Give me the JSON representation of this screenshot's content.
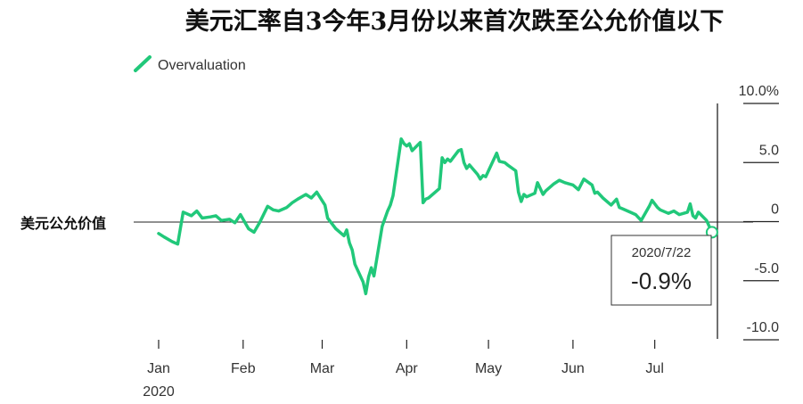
{
  "chart_data": {
    "type": "line",
    "title": "美元汇率自3今年3月份以来首次跌至公允价值以下",
    "series": [
      {
        "name": "Overvaluation",
        "color": "#21c87a",
        "points": [
          [
            "2020-01-01",
            -1.0
          ],
          [
            "2020-01-03",
            -1.3
          ],
          [
            "2020-01-06",
            -1.7
          ],
          [
            "2020-01-08",
            -1.9
          ],
          [
            "2020-01-10",
            0.8
          ],
          [
            "2020-01-13",
            0.5
          ],
          [
            "2020-01-15",
            0.9
          ],
          [
            "2020-01-17",
            0.3
          ],
          [
            "2020-01-20",
            0.4
          ],
          [
            "2020-01-22",
            0.5
          ],
          [
            "2020-01-24",
            0.1
          ],
          [
            "2020-01-27",
            0.2
          ],
          [
            "2020-01-29",
            -0.1
          ],
          [
            "2020-01-31",
            0.6
          ],
          [
            "2020-02-03",
            -0.6
          ],
          [
            "2020-02-05",
            -0.9
          ],
          [
            "2020-02-07",
            -0.1
          ],
          [
            "2020-02-10",
            1.3
          ],
          [
            "2020-02-12",
            1.0
          ],
          [
            "2020-02-14",
            0.9
          ],
          [
            "2020-02-17",
            1.2
          ],
          [
            "2020-02-19",
            1.6
          ],
          [
            "2020-02-21",
            1.9
          ],
          [
            "2020-02-24",
            2.3
          ],
          [
            "2020-02-26",
            2.0
          ],
          [
            "2020-02-28",
            2.5
          ],
          [
            "2020-03-02",
            1.4
          ],
          [
            "2020-03-03",
            0.3
          ],
          [
            "2020-03-06",
            -0.6
          ],
          [
            "2020-03-09",
            -1.2
          ],
          [
            "2020-03-10",
            -0.7
          ],
          [
            "2020-03-11",
            -1.8
          ],
          [
            "2020-03-12",
            -2.4
          ],
          [
            "2020-03-13",
            -3.6
          ],
          [
            "2020-03-16",
            -5.1
          ],
          [
            "2020-03-17",
            -6.1
          ],
          [
            "2020-03-18",
            -4.7
          ],
          [
            "2020-03-19",
            -3.9
          ],
          [
            "2020-03-20",
            -4.6
          ],
          [
            "2020-03-23",
            -0.4
          ],
          [
            "2020-03-25",
            0.9
          ],
          [
            "2020-03-26",
            1.4
          ],
          [
            "2020-03-27",
            2.2
          ],
          [
            "2020-03-30",
            7.0
          ],
          [
            "2020-03-31",
            6.6
          ],
          [
            "2020-04-01",
            6.4
          ],
          [
            "2020-04-02",
            6.6
          ],
          [
            "2020-04-03",
            6.0
          ],
          [
            "2020-04-06",
            6.7
          ],
          [
            "2020-04-07",
            1.6
          ],
          [
            "2020-04-08",
            1.9
          ],
          [
            "2020-04-09",
            2.0
          ],
          [
            "2020-04-13",
            2.8
          ],
          [
            "2020-04-14",
            5.4
          ],
          [
            "2020-04-15",
            5.0
          ],
          [
            "2020-04-16",
            5.3
          ],
          [
            "2020-04-17",
            5.1
          ],
          [
            "2020-04-20",
            6.0
          ],
          [
            "2020-04-21",
            6.1
          ],
          [
            "2020-04-22",
            5.0
          ],
          [
            "2020-04-23",
            4.5
          ],
          [
            "2020-04-24",
            4.8
          ],
          [
            "2020-04-27",
            4.0
          ],
          [
            "2020-04-28",
            3.6
          ],
          [
            "2020-04-29",
            3.9
          ],
          [
            "2020-04-30",
            3.8
          ],
          [
            "2020-05-01",
            4.3
          ],
          [
            "2020-05-04",
            5.8
          ],
          [
            "2020-05-05",
            5.1
          ],
          [
            "2020-05-07",
            5.0
          ],
          [
            "2020-05-08",
            4.8
          ],
          [
            "2020-05-11",
            4.3
          ],
          [
            "2020-05-12",
            2.5
          ],
          [
            "2020-05-13",
            1.7
          ],
          [
            "2020-05-14",
            2.3
          ],
          [
            "2020-05-15",
            2.1
          ],
          [
            "2020-05-18",
            2.4
          ],
          [
            "2020-05-19",
            3.3
          ],
          [
            "2020-05-20",
            2.8
          ],
          [
            "2020-05-21",
            2.3
          ],
          [
            "2020-05-22",
            2.6
          ],
          [
            "2020-05-25",
            3.2
          ],
          [
            "2020-05-27",
            3.5
          ],
          [
            "2020-05-29",
            3.3
          ],
          [
            "2020-06-01",
            3.1
          ],
          [
            "2020-06-03",
            2.7
          ],
          [
            "2020-06-05",
            3.6
          ],
          [
            "2020-06-08",
            3.1
          ],
          [
            "2020-06-09",
            2.4
          ],
          [
            "2020-06-10",
            2.5
          ],
          [
            "2020-06-12",
            2.0
          ],
          [
            "2020-06-15",
            1.4
          ],
          [
            "2020-06-17",
            1.9
          ],
          [
            "2020-06-18",
            1.2
          ],
          [
            "2020-06-19",
            1.1
          ],
          [
            "2020-06-22",
            0.8
          ],
          [
            "2020-06-24",
            0.6
          ],
          [
            "2020-06-26",
            0.1
          ],
          [
            "2020-06-29",
            1.3
          ],
          [
            "2020-06-30",
            1.8
          ],
          [
            "2020-07-02",
            1.2
          ],
          [
            "2020-07-03",
            1.0
          ],
          [
            "2020-07-06",
            0.7
          ],
          [
            "2020-07-08",
            0.9
          ],
          [
            "2020-07-10",
            0.6
          ],
          [
            "2020-07-13",
            0.8
          ],
          [
            "2020-07-14",
            1.5
          ],
          [
            "2020-07-15",
            0.5
          ],
          [
            "2020-07-16",
            0.3
          ],
          [
            "2020-07-17",
            0.8
          ],
          [
            "2020-07-20",
            0.1
          ],
          [
            "2020-07-21",
            -0.4
          ],
          [
            "2020-07-22",
            -0.9
          ]
        ]
      }
    ],
    "y_ticks": [
      {
        "value": 10,
        "label": "10.0%"
      },
      {
        "value": 5,
        "label": "5.0"
      },
      {
        "value": 0,
        "label": "0"
      },
      {
        "value": -5,
        "label": "-5.0"
      },
      {
        "value": -10,
        "label": "-10.0"
      }
    ],
    "x_ticks": [
      {
        "date": "2020-01-01",
        "label": "Jan"
      },
      {
        "date": "2020-02-01",
        "label": "Feb"
      },
      {
        "date": "2020-03-01",
        "label": "Mar"
      },
      {
        "date": "2020-04-01",
        "label": "Apr"
      },
      {
        "date": "2020-05-01",
        "label": "May"
      },
      {
        "date": "2020-06-01",
        "label": "Jun"
      },
      {
        "date": "2020-07-01",
        "label": "Jul"
      }
    ],
    "x_year_label": "2020",
    "ylim": [
      -10,
      10
    ],
    "xlim": [
      "2020-01-01",
      "2020-07-24"
    ],
    "reference_line": {
      "value": 0,
      "label": "美元公允价值"
    },
    "annotation": {
      "date": "2020-07-22",
      "date_label": "2020/7/22",
      "value": -0.9,
      "value_label": "-0.9%"
    },
    "legend": {
      "position": "top-left"
    }
  }
}
